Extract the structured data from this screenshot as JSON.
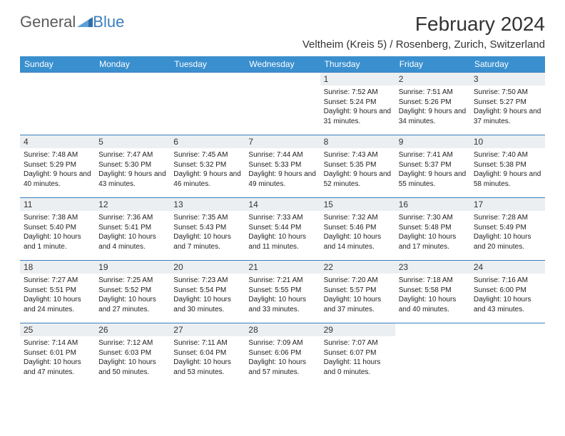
{
  "brand": {
    "part1": "General",
    "part2": "Blue"
  },
  "title": "February 2024",
  "location": "Veltheim (Kreis 5) / Rosenberg, Zurich, Switzerland",
  "colors": {
    "header_bg": "#3a8fce",
    "header_text": "#ffffff",
    "border": "#3a7fbf",
    "daynum_bg": "#eceff1",
    "text": "#222222",
    "brand_gray": "#5a5a5a",
    "brand_blue": "#3a7fbf"
  },
  "day_names": [
    "Sunday",
    "Monday",
    "Tuesday",
    "Wednesday",
    "Thursday",
    "Friday",
    "Saturday"
  ],
  "weeks": [
    [
      {
        "n": "",
        "sr": "",
        "ss": "",
        "dl": ""
      },
      {
        "n": "",
        "sr": "",
        "ss": "",
        "dl": ""
      },
      {
        "n": "",
        "sr": "",
        "ss": "",
        "dl": ""
      },
      {
        "n": "",
        "sr": "",
        "ss": "",
        "dl": ""
      },
      {
        "n": "1",
        "sr": "Sunrise: 7:52 AM",
        "ss": "Sunset: 5:24 PM",
        "dl": "Daylight: 9 hours and 31 minutes."
      },
      {
        "n": "2",
        "sr": "Sunrise: 7:51 AM",
        "ss": "Sunset: 5:26 PM",
        "dl": "Daylight: 9 hours and 34 minutes."
      },
      {
        "n": "3",
        "sr": "Sunrise: 7:50 AM",
        "ss": "Sunset: 5:27 PM",
        "dl": "Daylight: 9 hours and 37 minutes."
      }
    ],
    [
      {
        "n": "4",
        "sr": "Sunrise: 7:48 AM",
        "ss": "Sunset: 5:29 PM",
        "dl": "Daylight: 9 hours and 40 minutes."
      },
      {
        "n": "5",
        "sr": "Sunrise: 7:47 AM",
        "ss": "Sunset: 5:30 PM",
        "dl": "Daylight: 9 hours and 43 minutes."
      },
      {
        "n": "6",
        "sr": "Sunrise: 7:45 AM",
        "ss": "Sunset: 5:32 PM",
        "dl": "Daylight: 9 hours and 46 minutes."
      },
      {
        "n": "7",
        "sr": "Sunrise: 7:44 AM",
        "ss": "Sunset: 5:33 PM",
        "dl": "Daylight: 9 hours and 49 minutes."
      },
      {
        "n": "8",
        "sr": "Sunrise: 7:43 AM",
        "ss": "Sunset: 5:35 PM",
        "dl": "Daylight: 9 hours and 52 minutes."
      },
      {
        "n": "9",
        "sr": "Sunrise: 7:41 AM",
        "ss": "Sunset: 5:37 PM",
        "dl": "Daylight: 9 hours and 55 minutes."
      },
      {
        "n": "10",
        "sr": "Sunrise: 7:40 AM",
        "ss": "Sunset: 5:38 PM",
        "dl": "Daylight: 9 hours and 58 minutes."
      }
    ],
    [
      {
        "n": "11",
        "sr": "Sunrise: 7:38 AM",
        "ss": "Sunset: 5:40 PM",
        "dl": "Daylight: 10 hours and 1 minute."
      },
      {
        "n": "12",
        "sr": "Sunrise: 7:36 AM",
        "ss": "Sunset: 5:41 PM",
        "dl": "Daylight: 10 hours and 4 minutes."
      },
      {
        "n": "13",
        "sr": "Sunrise: 7:35 AM",
        "ss": "Sunset: 5:43 PM",
        "dl": "Daylight: 10 hours and 7 minutes."
      },
      {
        "n": "14",
        "sr": "Sunrise: 7:33 AM",
        "ss": "Sunset: 5:44 PM",
        "dl": "Daylight: 10 hours and 11 minutes."
      },
      {
        "n": "15",
        "sr": "Sunrise: 7:32 AM",
        "ss": "Sunset: 5:46 PM",
        "dl": "Daylight: 10 hours and 14 minutes."
      },
      {
        "n": "16",
        "sr": "Sunrise: 7:30 AM",
        "ss": "Sunset: 5:48 PM",
        "dl": "Daylight: 10 hours and 17 minutes."
      },
      {
        "n": "17",
        "sr": "Sunrise: 7:28 AM",
        "ss": "Sunset: 5:49 PM",
        "dl": "Daylight: 10 hours and 20 minutes."
      }
    ],
    [
      {
        "n": "18",
        "sr": "Sunrise: 7:27 AM",
        "ss": "Sunset: 5:51 PM",
        "dl": "Daylight: 10 hours and 24 minutes."
      },
      {
        "n": "19",
        "sr": "Sunrise: 7:25 AM",
        "ss": "Sunset: 5:52 PM",
        "dl": "Daylight: 10 hours and 27 minutes."
      },
      {
        "n": "20",
        "sr": "Sunrise: 7:23 AM",
        "ss": "Sunset: 5:54 PM",
        "dl": "Daylight: 10 hours and 30 minutes."
      },
      {
        "n": "21",
        "sr": "Sunrise: 7:21 AM",
        "ss": "Sunset: 5:55 PM",
        "dl": "Daylight: 10 hours and 33 minutes."
      },
      {
        "n": "22",
        "sr": "Sunrise: 7:20 AM",
        "ss": "Sunset: 5:57 PM",
        "dl": "Daylight: 10 hours and 37 minutes."
      },
      {
        "n": "23",
        "sr": "Sunrise: 7:18 AM",
        "ss": "Sunset: 5:58 PM",
        "dl": "Daylight: 10 hours and 40 minutes."
      },
      {
        "n": "24",
        "sr": "Sunrise: 7:16 AM",
        "ss": "Sunset: 6:00 PM",
        "dl": "Daylight: 10 hours and 43 minutes."
      }
    ],
    [
      {
        "n": "25",
        "sr": "Sunrise: 7:14 AM",
        "ss": "Sunset: 6:01 PM",
        "dl": "Daylight: 10 hours and 47 minutes."
      },
      {
        "n": "26",
        "sr": "Sunrise: 7:12 AM",
        "ss": "Sunset: 6:03 PM",
        "dl": "Daylight: 10 hours and 50 minutes."
      },
      {
        "n": "27",
        "sr": "Sunrise: 7:11 AM",
        "ss": "Sunset: 6:04 PM",
        "dl": "Daylight: 10 hours and 53 minutes."
      },
      {
        "n": "28",
        "sr": "Sunrise: 7:09 AM",
        "ss": "Sunset: 6:06 PM",
        "dl": "Daylight: 10 hours and 57 minutes."
      },
      {
        "n": "29",
        "sr": "Sunrise: 7:07 AM",
        "ss": "Sunset: 6:07 PM",
        "dl": "Daylight: 11 hours and 0 minutes."
      },
      {
        "n": "",
        "sr": "",
        "ss": "",
        "dl": ""
      },
      {
        "n": "",
        "sr": "",
        "ss": "",
        "dl": ""
      }
    ]
  ]
}
